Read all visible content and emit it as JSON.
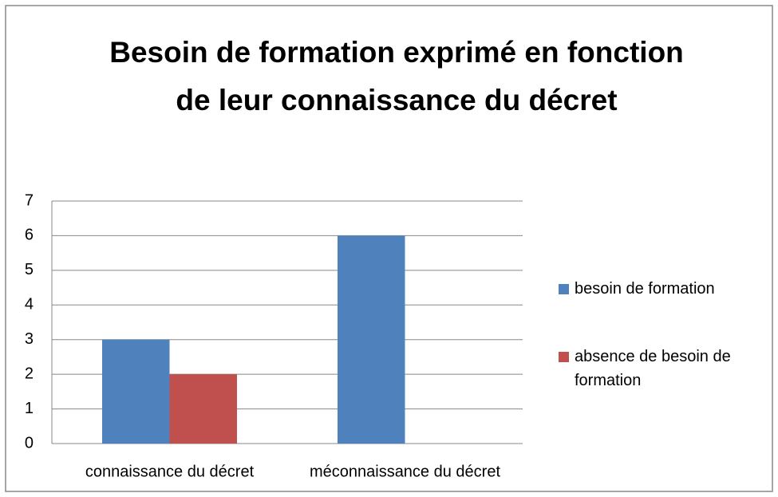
{
  "chart_data": {
    "type": "bar",
    "title": "Besoin de formation exprimé en fonction de leur connaissance du décret",
    "categories": [
      "connaissance du décret",
      "méconnaissance du décret"
    ],
    "series": [
      {
        "name": "besoin de formation",
        "color": "#4f81bd",
        "values": [
          3,
          6
        ]
      },
      {
        "name": "absence de besoin de formation",
        "color": "#c0504d",
        "values": [
          2,
          0
        ]
      }
    ],
    "ylim": [
      0,
      7
    ],
    "yticks": [
      0,
      1,
      2,
      3,
      4,
      5,
      6,
      7
    ],
    "grid": true,
    "legend": "right"
  }
}
